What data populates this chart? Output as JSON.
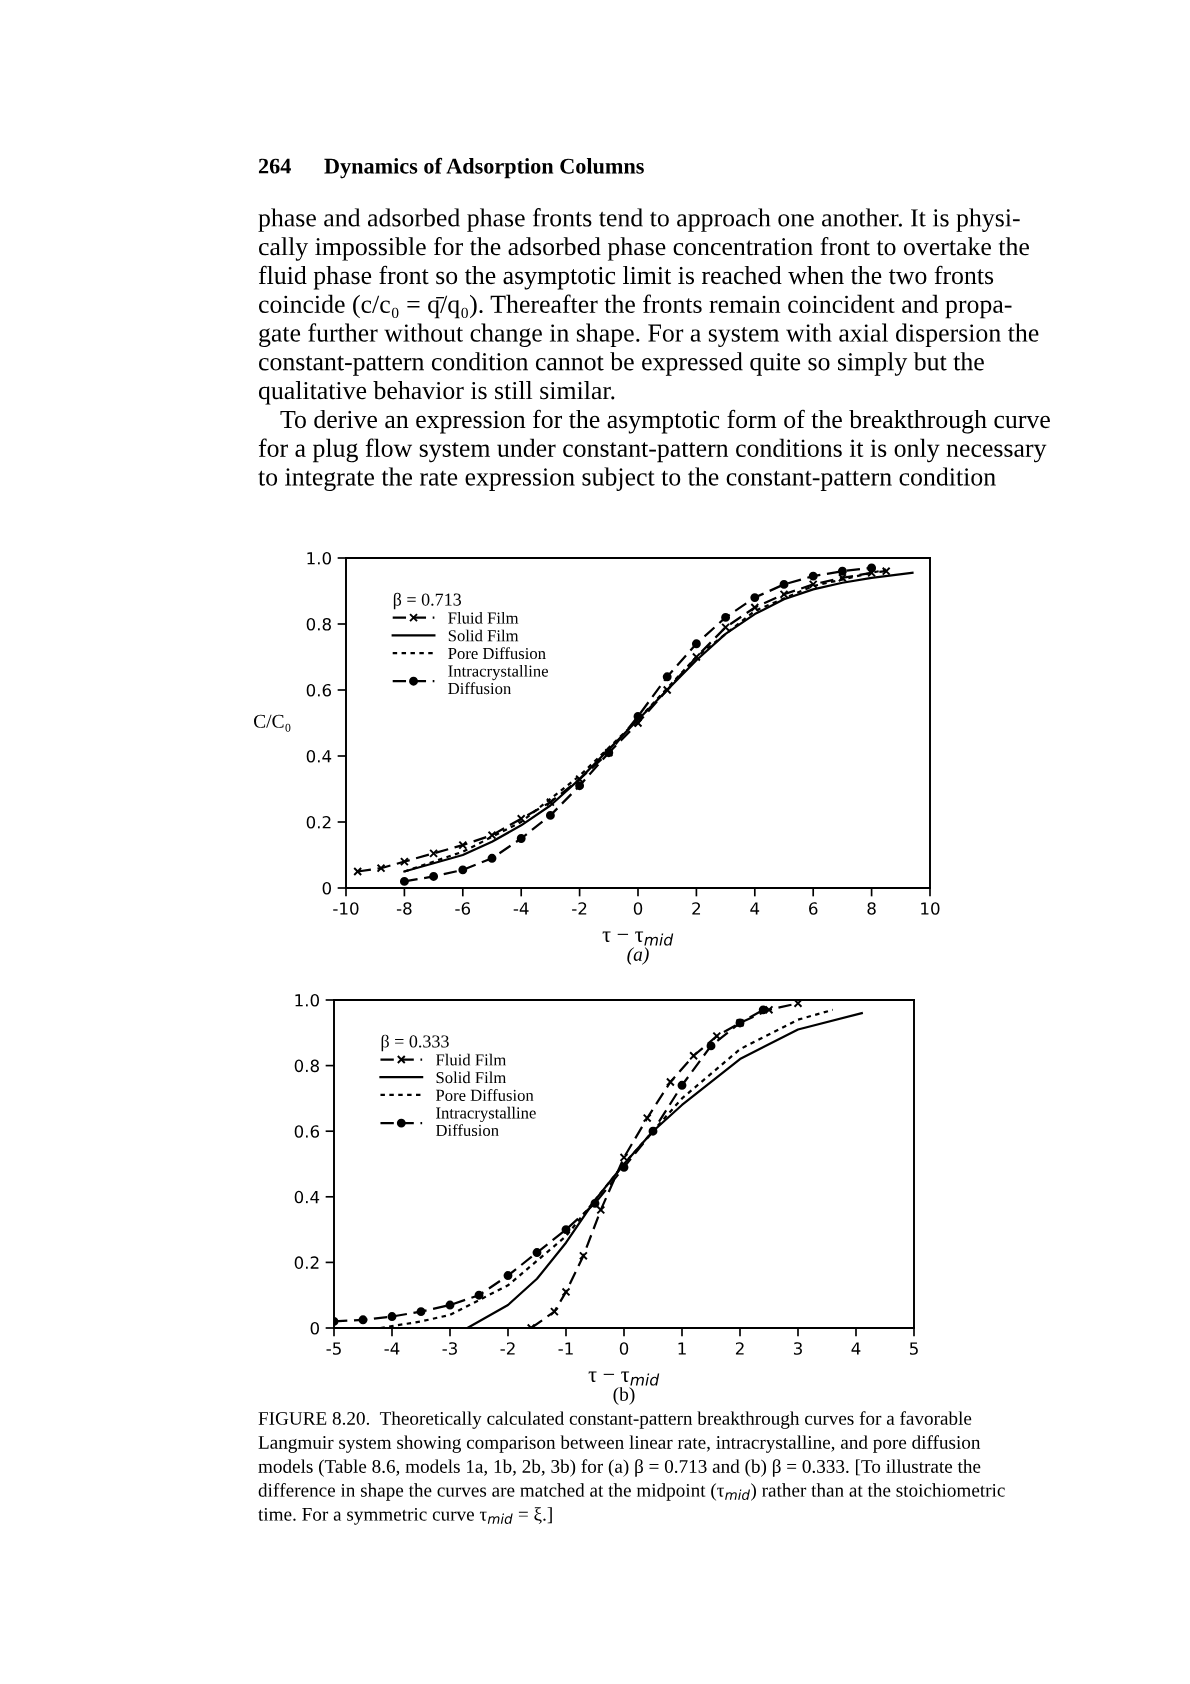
{
  "chart_data": [
    {
      "type": "line",
      "title": null,
      "xlabel": "τ − τ$_{mid}$",
      "ylabel": "C/C₀",
      "legend_title": "β = 0.713",
      "legend": "top left",
      "grid": false,
      "xlim": [
        -10,
        10
      ],
      "xticks": [
        -10,
        -8,
        -6,
        -4,
        -2,
        0,
        2,
        4,
        6,
        8,
        10
      ],
      "ylim": [
        0,
        1
      ],
      "yticks": [
        0,
        0.2,
        0.4,
        0.6,
        0.8,
        {
          "value": 1,
          "label": "1.0"
        }
      ],
      "annotations": [
        "264",
        "Dynamics of Adsorption Columns",
        "phase and adsorbed phase fronts tend to approach one another. It is physi-",
        "cally impossible for the adsorbed phase concentration front to overtake the",
        "fluid phase front so the asymptotic limit is reached when the two fronts",
        "coincide (c/c₀ = q̄/q₀). Thereafter the fronts remain coincident and propa-",
        "gate further without change in shape. For a system with axial dispersion the",
        "constant-pattern condition cannot be expressed quite so simply but the",
        "qualitative behavior is still similar.",
        "To derive an expression for the asymptotic form of the breakthrough curve",
        "for a plug flow system under constant-pattern conditions it is only necessary",
        "to integrate the rate expression subject to the constant-pattern condition",
        "(a)"
      ],
      "series": [
        {
          "name": "Fluid Film",
          "color": "#000000",
          "line_style": "dashed",
          "marker": "cross",
          "x": [
            -9.6,
            -8.8,
            -8,
            -7,
            -6,
            -5,
            -4,
            -3,
            -2,
            -1,
            0,
            1,
            2,
            3,
            4,
            5,
            6,
            7,
            8,
            8.5
          ],
          "values": [
            0.05,
            0.06,
            0.08,
            0.105,
            0.13,
            0.16,
            0.21,
            0.26,
            0.33,
            0.41,
            0.5,
            0.6,
            0.7,
            0.79,
            0.85,
            0.89,
            0.92,
            0.94,
            0.955,
            0.96
          ]
        },
        {
          "name": "Solid Film",
          "color": "#000000",
          "line_style": "solid",
          "marker": "none",
          "x": [
            -8,
            -7,
            -6,
            -5,
            -4,
            -3,
            -2,
            -1,
            0,
            1,
            2,
            3,
            4,
            5,
            6,
            7,
            8,
            9.4
          ],
          "values": [
            0.05,
            0.075,
            0.1,
            0.14,
            0.19,
            0.25,
            0.33,
            0.42,
            0.51,
            0.6,
            0.69,
            0.77,
            0.83,
            0.875,
            0.905,
            0.925,
            0.94,
            0.955
          ]
        },
        {
          "name": "Pore Diffusion",
          "color": "#000000",
          "line_style": "dotted",
          "marker": "none",
          "x": [
            -8,
            -6,
            -4,
            -2,
            0,
            2,
            4,
            6,
            8,
            8.5
          ],
          "values": [
            0.05,
            0.11,
            0.2,
            0.34,
            0.51,
            0.7,
            0.84,
            0.915,
            0.955,
            0.965
          ]
        },
        {
          "name": "Intracrystalline\nDiffusion",
          "color": "#000000",
          "line_style": "dashed",
          "marker": "circle",
          "x": [
            -8,
            -7,
            -6,
            -5,
            -4,
            -3,
            -2,
            -1,
            0,
            1,
            2,
            3,
            4,
            5,
            6,
            7,
            8
          ],
          "values": [
            0.02,
            0.035,
            0.055,
            0.09,
            0.15,
            0.22,
            0.31,
            0.41,
            0.52,
            0.64,
            0.74,
            0.82,
            0.88,
            0.92,
            0.945,
            0.96,
            0.97
          ]
        }
      ]
    },
    {
      "type": "line",
      "title": null,
      "xlabel": "τ − τ$_{mid}$",
      "legend_title": "β = 0.333",
      "legend": "top left",
      "grid": false,
      "xlim": [
        -5,
        5
      ],
      "xticks": [
        -5,
        -4,
        -3,
        -2,
        -1,
        0,
        1,
        2,
        3,
        4,
        5
      ],
      "ylim": [
        0,
        1
      ],
      "yticks": [
        0,
        0.2,
        0.4,
        0.6,
        0.8,
        {
          "value": 1,
          "label": "1.0"
        }
      ],
      "annotations": [
        "(b)",
        "FIGURE 8.20.  Theoretically calculated constant-pattern breakthrough curves for a favorable",
        "Langmuir system showing comparison between linear rate, intracrystalline, and pore diffusion",
        "models (Table 8.6, models 1a, 1b, 2b, 3b) for (a) β = 0.713 and (b) β = 0.333. [To illustrate the",
        "difference in shape the curves are matched at the midpoint (τ$_{mid}$) rather than at the stoichiometric",
        "time. For a symmetric curve τ$_{mid}$ = ξ.]"
      ],
      "series": [
        {
          "name": "Fluid Film",
          "color": "#000000",
          "line_style": "dashed",
          "marker": "cross",
          "x": [
            -1.6,
            -1.2,
            -1,
            -0.7,
            -0.4,
            0,
            0.4,
            0.8,
            1.2,
            1.6,
            2,
            2.5,
            3
          ],
          "values": [
            0,
            0.05,
            0.11,
            0.22,
            0.36,
            0.52,
            0.64,
            0.75,
            0.83,
            0.89,
            0.93,
            0.97,
            0.99
          ]
        },
        {
          "name": "Solid Film",
          "color": "#000000",
          "line_style": "solid",
          "marker": "none",
          "x": [
            -2.7,
            -2,
            -1.5,
            -1,
            -0.5,
            0,
            0.5,
            1,
            2,
            3,
            4.1
          ],
          "values": [
            0,
            0.07,
            0.15,
            0.26,
            0.39,
            0.5,
            0.6,
            0.68,
            0.82,
            0.91,
            0.96
          ]
        },
        {
          "name": "Pore Diffusion",
          "color": "#000000",
          "line_style": "dotted",
          "marker": "none",
          "x": [
            -4.2,
            -3.5,
            -3,
            -2,
            -1,
            0,
            0.5,
            1,
            2,
            3,
            3.6
          ],
          "values": [
            0,
            0.02,
            0.04,
            0.13,
            0.28,
            0.5,
            0.6,
            0.7,
            0.85,
            0.94,
            0.97
          ]
        },
        {
          "name": "Intracrystalline\nDiffusion",
          "color": "#000000",
          "line_style": "dashed",
          "marker": "circle",
          "x": [
            -5,
            -4.5,
            -4,
            -3.5,
            -3,
            -2.5,
            -2,
            -1.5,
            -1,
            -0.5,
            0,
            0.5,
            1,
            1.5,
            2,
            2.4
          ],
          "values": [
            0.02,
            0.025,
            0.035,
            0.05,
            0.07,
            0.1,
            0.16,
            0.23,
            0.3,
            0.38,
            0.49,
            0.6,
            0.74,
            0.86,
            0.93,
            0.97
          ]
        }
      ]
    }
  ]
}
